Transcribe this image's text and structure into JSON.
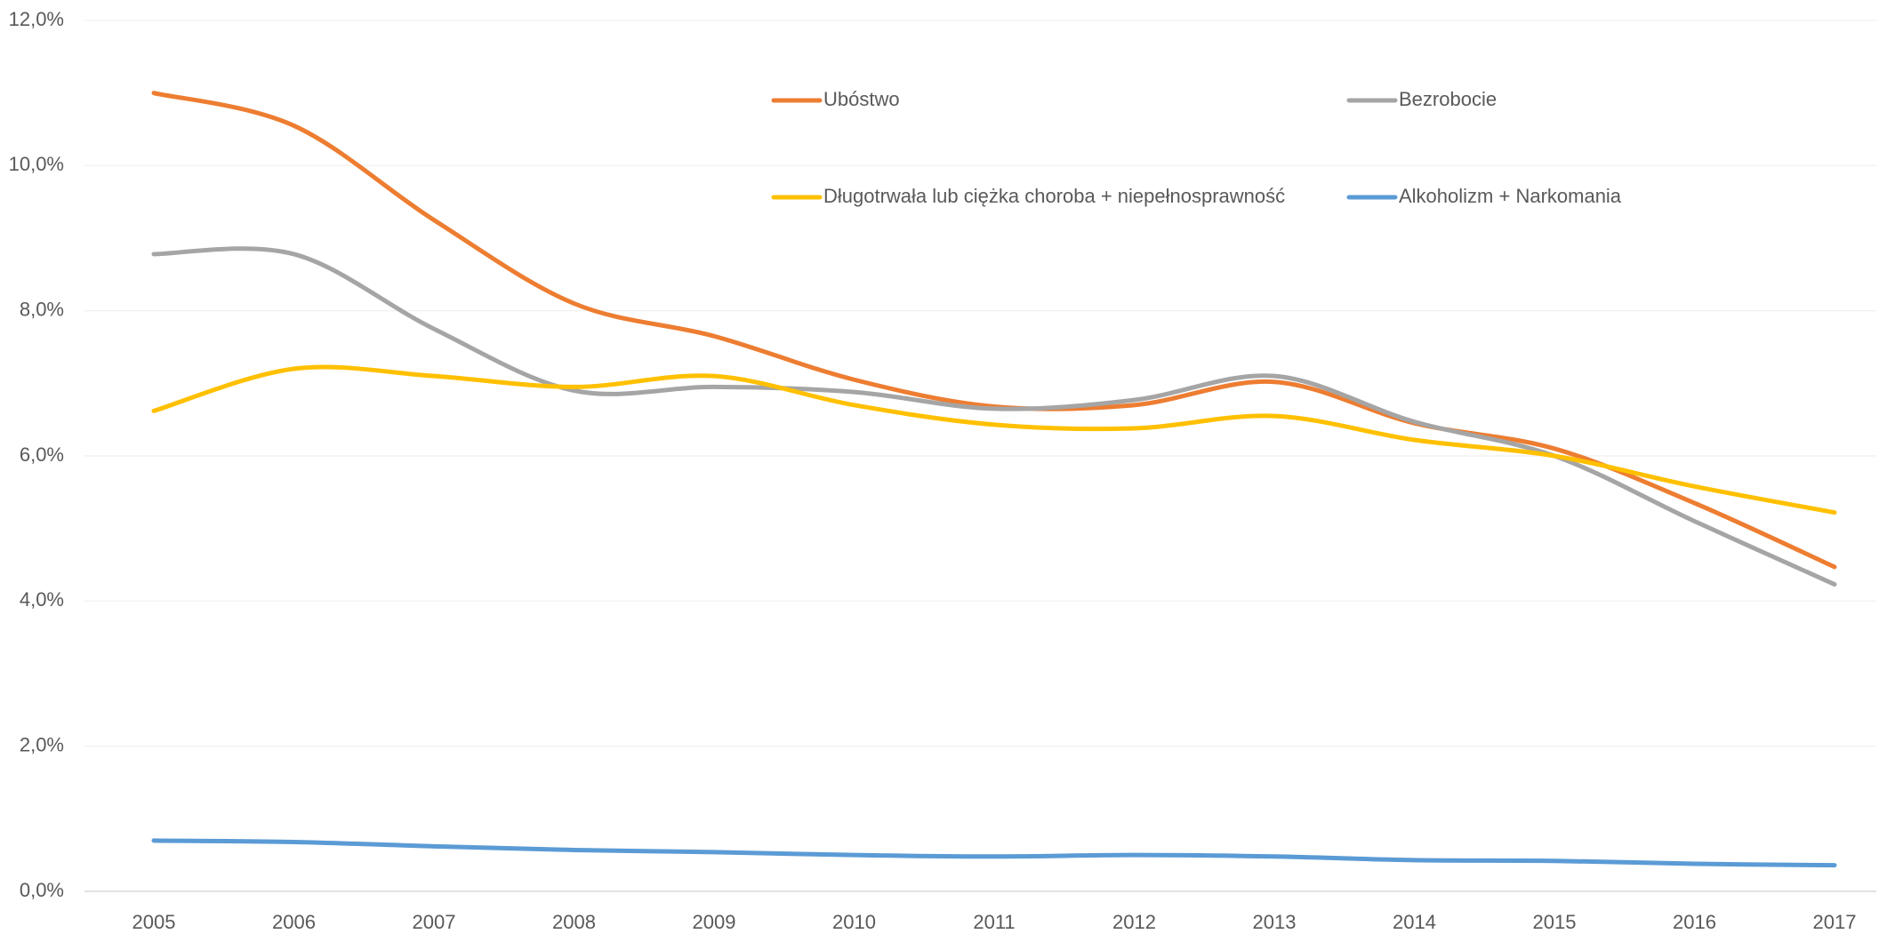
{
  "chart_data": {
    "type": "line",
    "smooth": true,
    "grid": true,
    "legend": "top",
    "categories": [
      "2005",
      "2006",
      "2007",
      "2008",
      "2009",
      "2010",
      "2011",
      "2012",
      "2013",
      "2014",
      "2015",
      "2016",
      "2017"
    ],
    "ylim": [
      0,
      12
    ],
    "yticks": [
      {
        "value": 0,
        "label": "0,0%"
      },
      {
        "value": 2,
        "label": "2,0%"
      },
      {
        "value": 4,
        "label": "4,0%"
      },
      {
        "value": 6,
        "label": "6,0%"
      },
      {
        "value": 8,
        "label": "8,0%"
      },
      {
        "value": 10,
        "label": "10,0%"
      },
      {
        "value": 12,
        "label": "12,0%"
      }
    ],
    "series": [
      {
        "name": "Ubóstwo",
        "color": "#ed7d31",
        "values": [
          11.0,
          10.55,
          9.25,
          8.1,
          7.65,
          7.05,
          6.68,
          6.7,
          7.02,
          6.45,
          6.1,
          5.35,
          4.47
        ]
      },
      {
        "name": "Bezrobocie",
        "color": "#a5a5a5",
        "values": [
          8.78,
          8.78,
          7.75,
          6.9,
          6.95,
          6.88,
          6.65,
          6.77,
          7.1,
          6.47,
          6.0,
          5.1,
          4.23
        ]
      },
      {
        "name": "Długotrwała lub ciężka choroba + niepełnosprawność",
        "color": "#ffc000",
        "values": [
          6.62,
          7.2,
          7.1,
          6.95,
          7.1,
          6.7,
          6.43,
          6.38,
          6.55,
          6.22,
          6.0,
          5.58,
          5.22
        ]
      },
      {
        "name": "Alkoholizm + Narkomania",
        "color": "#5b9bd5",
        "values": [
          0.7,
          0.68,
          0.62,
          0.57,
          0.54,
          0.5,
          0.48,
          0.5,
          0.48,
          0.43,
          0.42,
          0.38,
          0.36
        ]
      }
    ]
  }
}
